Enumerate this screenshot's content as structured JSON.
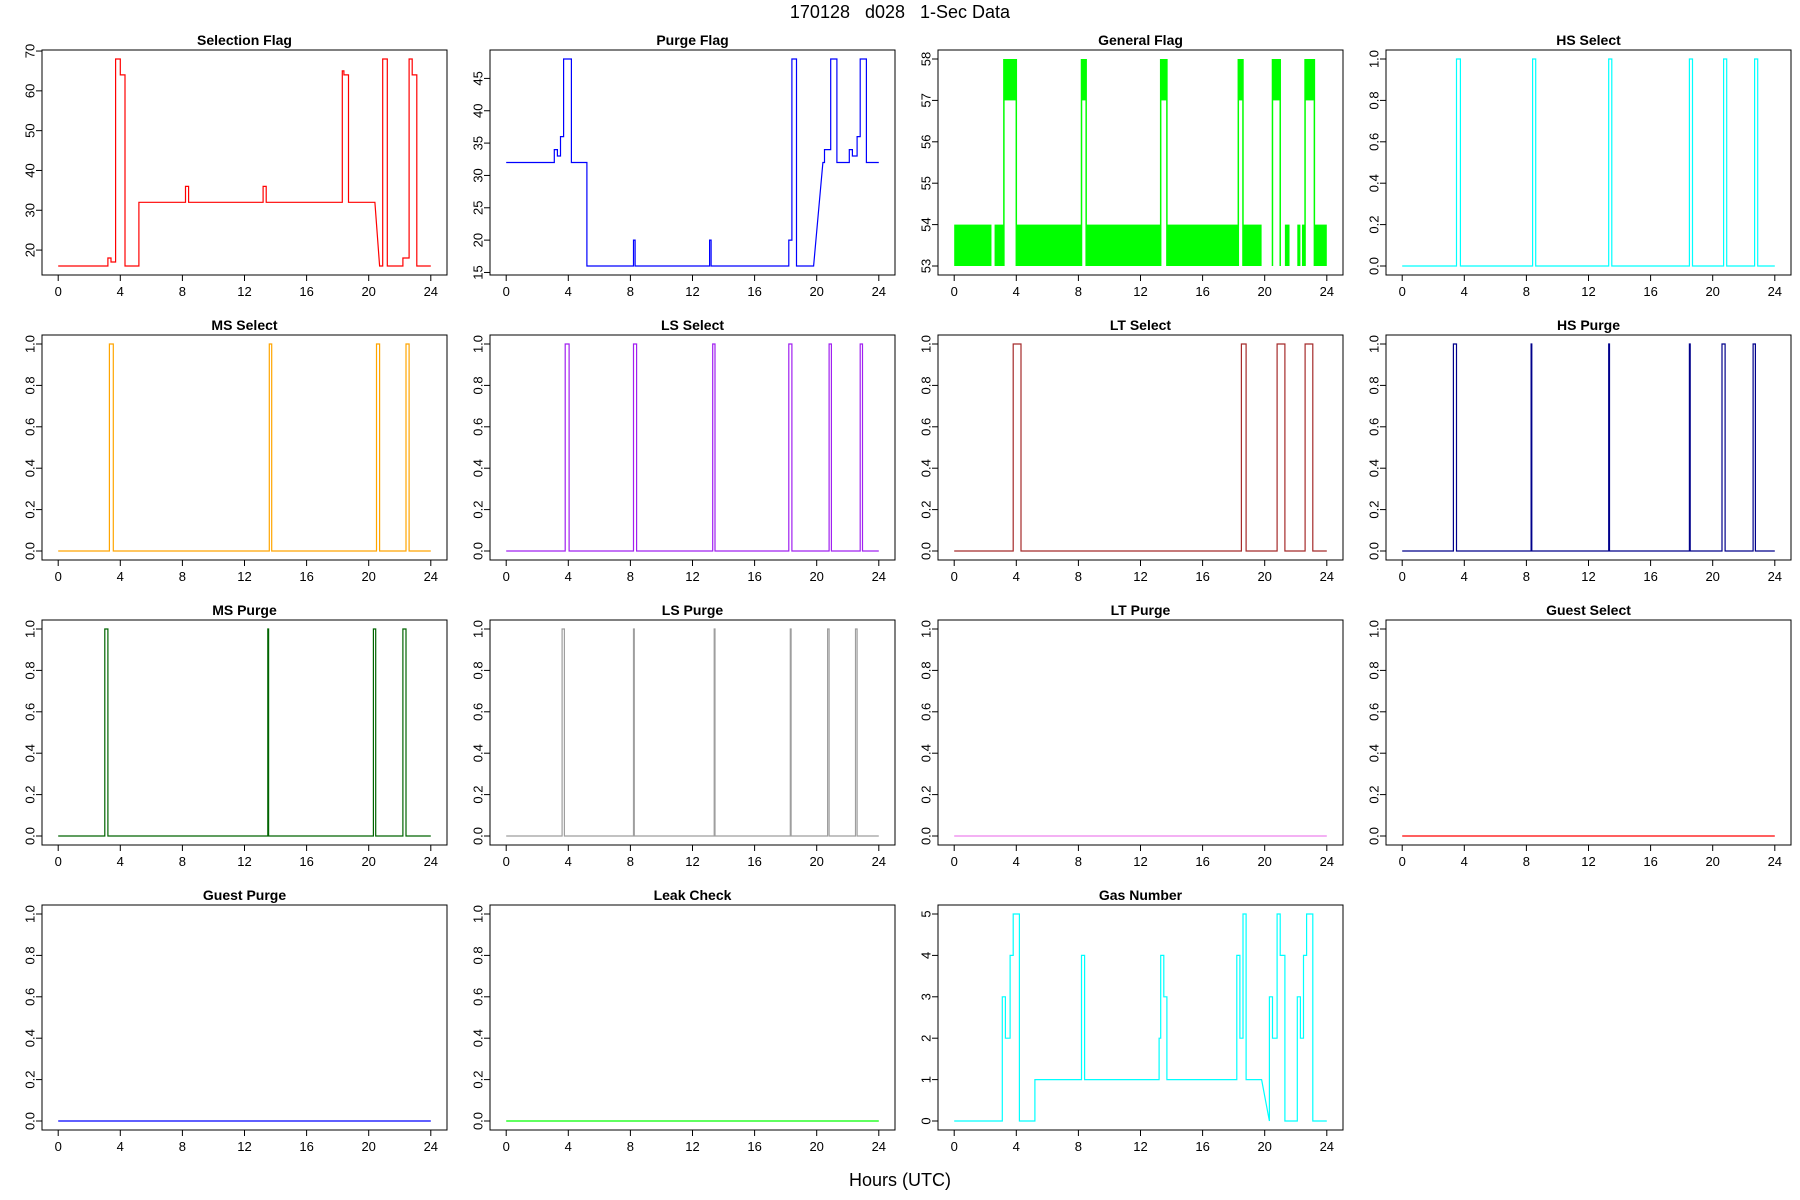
{
  "figure": {
    "title": "170128   d028   1-Sec Data",
    "xlabel": "Hours (UTC)"
  },
  "chart_data": [
    {
      "type": "line",
      "title": "Selection Flag",
      "color": "#ff0000",
      "xlim": [
        0,
        24
      ],
      "ylim": [
        16,
        68
      ],
      "xticks": [
        0,
        4,
        8,
        12,
        16,
        20,
        24
      ],
      "yticks": [
        20,
        30,
        40,
        50,
        60,
        70
      ],
      "x": [
        0,
        3.2,
        3.2,
        3.4,
        3.4,
        3.7,
        3.7,
        4.0,
        4.0,
        4.3,
        4.3,
        5.2,
        5.2,
        8.2,
        8.2,
        8.4,
        8.4,
        13.2,
        13.2,
        13.4,
        13.4,
        18.3,
        18.3,
        18.4,
        18.4,
        18.7,
        18.7,
        20.4,
        20.7,
        20.9,
        20.9,
        21.2,
        21.2,
        22.2,
        22.2,
        22.6,
        22.6,
        22.8,
        22.8,
        23.1,
        23.1,
        24.0
      ],
      "y": [
        16,
        16,
        18,
        18,
        17,
        17,
        68,
        68,
        64,
        64,
        16,
        16,
        32,
        32,
        36,
        36,
        32,
        32,
        36,
        36,
        32,
        32,
        65,
        65,
        64,
        64,
        32,
        32,
        16,
        16,
        68,
        68,
        16,
        16,
        18,
        18,
        68,
        68,
        64,
        64,
        16,
        16
      ]
    },
    {
      "type": "line",
      "title": "Purge Flag",
      "color": "#0000ff",
      "xlim": [
        0,
        24
      ],
      "ylim": [
        16,
        48
      ],
      "xticks": [
        0,
        4,
        8,
        12,
        16,
        20,
        24
      ],
      "yticks": [
        15,
        20,
        25,
        30,
        35,
        40,
        45
      ],
      "x": [
        0,
        3.1,
        3.1,
        3.3,
        3.3,
        3.5,
        3.5,
        3.7,
        3.7,
        4.2,
        4.2,
        5.2,
        5.2,
        8.2,
        8.2,
        8.3,
        8.3,
        13.1,
        13.1,
        13.2,
        13.2,
        18.2,
        18.2,
        18.4,
        18.4,
        18.7,
        18.7,
        19.8,
        20.4,
        20.5,
        20.5,
        20.9,
        20.9,
        21.3,
        21.3,
        22.1,
        22.1,
        22.3,
        22.3,
        22.6,
        22.6,
        22.8,
        22.8,
        23.2,
        23.2,
        24.0
      ],
      "y": [
        32,
        32,
        34,
        34,
        33,
        33,
        36,
        36,
        48,
        48,
        32,
        32,
        16,
        16,
        20,
        20,
        16,
        16,
        20,
        20,
        16,
        16,
        20,
        20,
        48,
        48,
        16,
        16,
        32,
        32,
        34,
        34,
        48,
        48,
        32,
        32,
        34,
        34,
        33,
        33,
        36,
        36,
        48,
        48,
        32,
        32
      ]
    },
    {
      "type": "band",
      "title": "General Flag",
      "color": "#00ff00",
      "xlim": [
        0,
        24
      ],
      "ylim": [
        53,
        58
      ],
      "xticks": [
        0,
        4,
        8,
        12,
        16,
        20,
        24
      ],
      "yticks": [
        53,
        54,
        55,
        56,
        57,
        58
      ],
      "low_bands": [
        [
          0.0,
          2.4
        ],
        [
          2.6,
          3.2
        ],
        [
          4.0,
          8.2
        ],
        [
          8.5,
          13.3
        ],
        [
          13.7,
          18.3
        ],
        [
          18.6,
          19.8
        ],
        [
          21.3,
          21.6
        ],
        [
          22.1,
          22.3
        ],
        [
          22.4,
          22.6
        ],
        [
          23.2,
          24.0
        ]
      ],
      "high_bands": [
        [
          3.2,
          4.0
        ],
        [
          8.2,
          8.5
        ],
        [
          13.3,
          13.7
        ],
        [
          18.3,
          18.6
        ],
        [
          20.5,
          21.0
        ],
        [
          22.6,
          23.2
        ]
      ],
      "high_upper": 58,
      "high_lower": 57
    },
    {
      "type": "line",
      "title": "HS Select",
      "color": "#00ffff",
      "xlim": [
        0,
        24
      ],
      "ylim": [
        0,
        1
      ],
      "xticks": [
        0,
        4,
        8,
        12,
        16,
        20,
        24
      ],
      "yticks": [
        0.0,
        0.2,
        0.4,
        0.6,
        0.8,
        1.0
      ],
      "pulses": [
        [
          3.5,
          3.75
        ],
        [
          8.4,
          8.6
        ],
        [
          13.3,
          13.5
        ],
        [
          18.5,
          18.7
        ],
        [
          20.7,
          20.9
        ],
        [
          22.7,
          22.9
        ]
      ]
    },
    {
      "type": "line",
      "title": "MS Select",
      "color": "#ffa500",
      "xlim": [
        0,
        24
      ],
      "ylim": [
        0,
        1
      ],
      "xticks": [
        0,
        4,
        8,
        12,
        16,
        20,
        24
      ],
      "yticks": [
        0.0,
        0.2,
        0.4,
        0.6,
        0.8,
        1.0
      ],
      "pulses": [
        [
          3.3,
          3.55
        ],
        [
          13.6,
          13.75
        ],
        [
          20.5,
          20.7
        ],
        [
          22.4,
          22.6
        ]
      ]
    },
    {
      "type": "line",
      "title": "LS Select",
      "color": "#a020f0",
      "xlim": [
        0,
        24
      ],
      "ylim": [
        0,
        1
      ],
      "xticks": [
        0,
        4,
        8,
        12,
        16,
        20,
        24
      ],
      "yticks": [
        0.0,
        0.2,
        0.4,
        0.6,
        0.8,
        1.0
      ],
      "pulses": [
        [
          3.8,
          4.05
        ],
        [
          8.2,
          8.4
        ],
        [
          13.3,
          13.45
        ],
        [
          18.2,
          18.4
        ],
        [
          20.8,
          20.95
        ],
        [
          22.8,
          22.95
        ]
      ]
    },
    {
      "type": "line",
      "title": "LT Select",
      "color": "#a52a2a",
      "xlim": [
        0,
        24
      ],
      "ylim": [
        0,
        1
      ],
      "xticks": [
        0,
        4,
        8,
        12,
        16,
        20,
        24
      ],
      "yticks": [
        0.0,
        0.2,
        0.4,
        0.6,
        0.8,
        1.0
      ],
      "pulses": [
        [
          3.8,
          4.3
        ],
        [
          18.5,
          18.8
        ],
        [
          20.8,
          21.3
        ],
        [
          22.6,
          23.1
        ]
      ]
    },
    {
      "type": "line",
      "title": "HS Purge",
      "color": "#00008b",
      "xlim": [
        0,
        24
      ],
      "ylim": [
        0,
        1
      ],
      "xticks": [
        0,
        4,
        8,
        12,
        16,
        20,
        24
      ],
      "yticks": [
        0.0,
        0.2,
        0.4,
        0.6,
        0.8,
        1.0
      ],
      "pulses": [
        [
          3.3,
          3.5
        ],
        [
          8.3,
          8.35
        ],
        [
          13.3,
          13.35
        ],
        [
          18.5,
          18.55
        ],
        [
          20.6,
          20.8
        ],
        [
          22.6,
          22.75
        ]
      ]
    },
    {
      "type": "line",
      "title": "MS Purge",
      "color": "#006400",
      "xlim": [
        0,
        24
      ],
      "ylim": [
        0,
        1
      ],
      "xticks": [
        0,
        4,
        8,
        12,
        16,
        20,
        24
      ],
      "yticks": [
        0.0,
        0.2,
        0.4,
        0.6,
        0.8,
        1.0
      ],
      "pulses": [
        [
          3.0,
          3.2
        ],
        [
          13.5,
          13.55
        ],
        [
          20.3,
          20.45
        ],
        [
          22.2,
          22.4
        ]
      ]
    },
    {
      "type": "line",
      "title": "LS Purge",
      "color": "#9e9e9e",
      "xlim": [
        0,
        24
      ],
      "ylim": [
        0,
        1
      ],
      "xticks": [
        0,
        4,
        8,
        12,
        16,
        20,
        24
      ],
      "yticks": [
        0.0,
        0.2,
        0.4,
        0.6,
        0.8,
        1.0
      ],
      "pulses": [
        [
          3.6,
          3.75
        ],
        [
          8.2,
          8.25
        ],
        [
          13.4,
          13.45
        ],
        [
          18.3,
          18.35
        ],
        [
          20.7,
          20.8
        ],
        [
          22.5,
          22.6
        ]
      ]
    },
    {
      "type": "line",
      "title": "LT Purge",
      "color": "#ee82ee",
      "xlim": [
        0,
        24
      ],
      "ylim": [
        0,
        1
      ],
      "xticks": [
        0,
        4,
        8,
        12,
        16,
        20,
        24
      ],
      "yticks": [
        0.0,
        0.2,
        0.4,
        0.6,
        0.8,
        1.0
      ],
      "pulses": []
    },
    {
      "type": "line",
      "title": "Guest Select",
      "color": "#ff0000",
      "xlim": [
        0,
        24
      ],
      "ylim": [
        0,
        1
      ],
      "xticks": [
        0,
        4,
        8,
        12,
        16,
        20,
        24
      ],
      "yticks": [
        0.0,
        0.2,
        0.4,
        0.6,
        0.8,
        1.0
      ],
      "pulses": []
    },
    {
      "type": "line",
      "title": "Guest Purge",
      "color": "#0000ff",
      "xlim": [
        0,
        24
      ],
      "ylim": [
        0,
        1
      ],
      "xticks": [
        0,
        4,
        8,
        12,
        16,
        20,
        24
      ],
      "yticks": [
        0.0,
        0.2,
        0.4,
        0.6,
        0.8,
        1.0
      ],
      "pulses": []
    },
    {
      "type": "line",
      "title": "Leak Check",
      "color": "#00ff00",
      "xlim": [
        0,
        24
      ],
      "ylim": [
        0,
        1
      ],
      "xticks": [
        0,
        4,
        8,
        12,
        16,
        20,
        24
      ],
      "yticks": [
        0.0,
        0.2,
        0.4,
        0.6,
        0.8,
        1.0
      ],
      "pulses": []
    },
    {
      "type": "line",
      "title": "Gas Number",
      "color": "#00ffff",
      "xlim": [
        0,
        24
      ],
      "ylim": [
        0,
        5
      ],
      "xticks": [
        0,
        4,
        8,
        12,
        16,
        20,
        24
      ],
      "yticks": [
        0,
        1,
        2,
        3,
        4,
        5
      ],
      "x": [
        0,
        3.1,
        3.1,
        3.3,
        3.3,
        3.6,
        3.6,
        3.8,
        3.8,
        4.2,
        4.2,
        5.2,
        5.2,
        8.2,
        8.2,
        8.4,
        8.4,
        13.2,
        13.2,
        13.3,
        13.3,
        13.5,
        13.5,
        13.7,
        13.7,
        18.2,
        18.2,
        18.4,
        18.4,
        18.6,
        18.6,
        18.8,
        18.8,
        19.8,
        20.3,
        20.3,
        20.5,
        20.5,
        20.8,
        20.8,
        21.0,
        21.0,
        21.3,
        21.3,
        22.1,
        22.1,
        22.3,
        22.3,
        22.5,
        22.5,
        22.7,
        22.7,
        23.1,
        23.1,
        24.0
      ],
      "y": [
        0,
        0,
        3,
        3,
        2,
        2,
        4,
        4,
        5,
        5,
        0,
        0,
        1,
        1,
        4,
        4,
        1,
        1,
        2,
        2,
        4,
        4,
        3,
        3,
        1,
        1,
        4,
        4,
        2,
        2,
        5,
        5,
        1,
        1,
        0,
        3,
        3,
        2,
        2,
        5,
        5,
        4,
        4,
        0,
        0,
        3,
        3,
        2,
        2,
        4,
        4,
        5,
        5,
        0,
        0
      ]
    }
  ]
}
